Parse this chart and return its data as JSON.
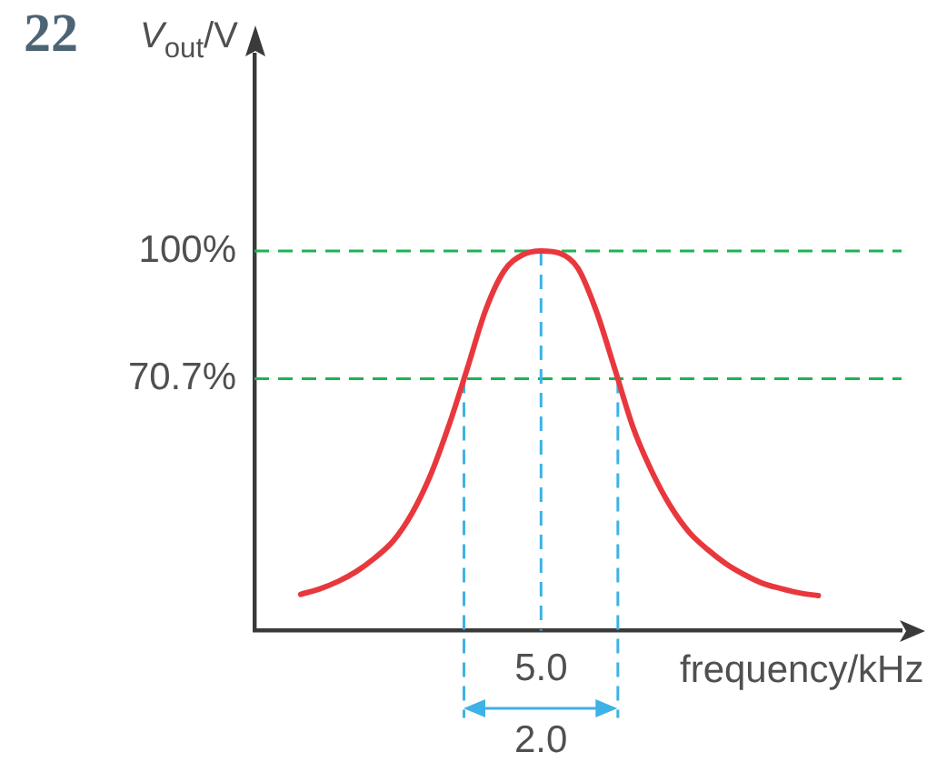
{
  "chart_data": {
    "type": "line",
    "title": "22",
    "xlabel": "frequency/kHz",
    "ylabel": "V$_{out}$/V",
    "categories": [
      null,
      null,
      null,
      null,
      null,
      null,
      null,
      null,
      null,
      null,
      null,
      null,
      null,
      null,
      null,
      "5.0",
      null,
      null,
      null,
      null,
      null,
      null,
      null,
      null,
      null,
      null,
      null,
      null,
      null,
      null,
      null,
      null,
      null,
      null,
      null
    ],
    "series": [
      {
        "color": "#e8383d",
        "values": [
          null,
          null,
          21.3,
          22.5,
          24.2,
          26.5,
          29.6,
          33.5,
          39.7,
          48.4,
          59.8,
          72.9,
          86.4,
          95.4,
          99.1,
          100,
          99.5,
          96.0,
          86.1,
          72.8,
          59.3,
          49.4,
          41.5,
          35.6,
          31.6,
          28.3,
          25.8,
          23.8,
          22.6,
          21.6,
          21.0,
          null,
          null,
          null,
          null
        ]
      }
    ],
    "ylim": [
      13,
      145
    ],
    "yticks": [
      {
        "value": 100,
        "label": "100%"
      },
      {
        "value": 70.7,
        "label": "70.7%"
      }
    ],
    "ref_lines": [
      {
        "axis": "y",
        "value": 100,
        "color": "#1db354",
        "line_style": "dashed"
      },
      {
        "axis": "y",
        "value": 70.7,
        "color": "#1db354",
        "line_style": "dashed"
      },
      {
        "axis": "x",
        "value": "5.0",
        "color": "#3db2e6",
        "line_style": "dashed"
      }
    ],
    "annotations": [
      "2.0"
    ]
  }
}
